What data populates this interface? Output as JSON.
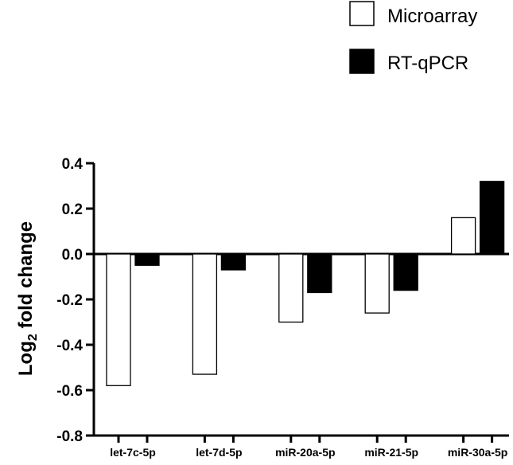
{
  "chart_data": {
    "type": "bar",
    "categories": [
      "let-7c-5p",
      "let-7d-5p",
      "miR-20a-5p",
      "miR-21-5p",
      "miR-30a-5p"
    ],
    "series": [
      {
        "name": "Microarray",
        "values": [
          -0.58,
          -0.53,
          -0.3,
          -0.26,
          0.16
        ],
        "color": "#ffffff"
      },
      {
        "name": "RT-qPCR",
        "values": [
          -0.05,
          -0.07,
          -0.17,
          -0.16,
          0.32
        ],
        "color": "#000000"
      }
    ],
    "ylabel": {
      "main": "Log",
      "sub": "2",
      "rest": " fold change"
    },
    "ylim": [
      -0.8,
      0.4
    ],
    "yticks": [
      "0.4",
      "0.2",
      "0.0",
      "-0.2",
      "-0.4",
      "-0.6",
      "-0.8"
    ],
    "legend_position": "top-right",
    "grid": false
  }
}
